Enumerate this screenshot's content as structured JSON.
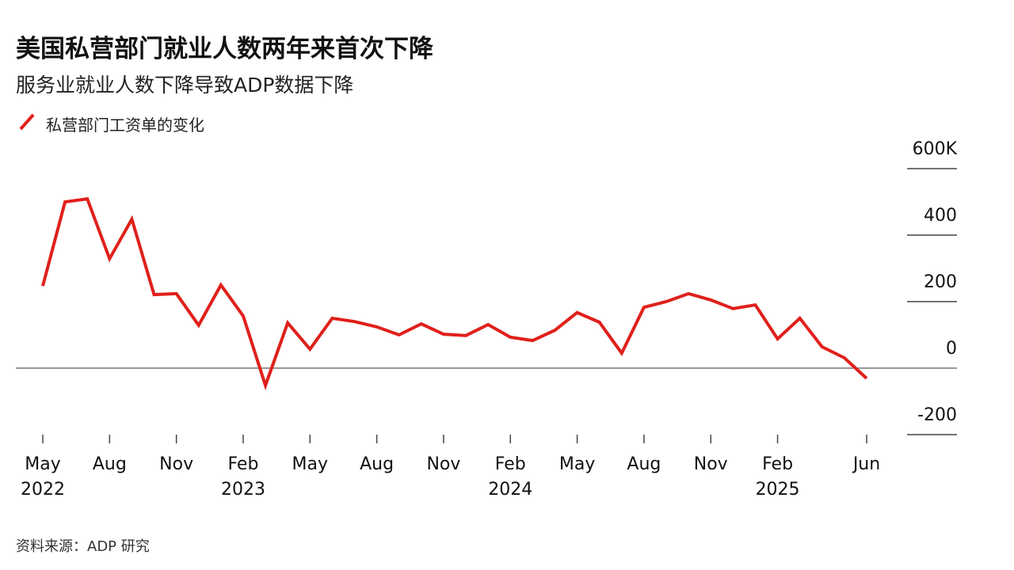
{
  "chart_data": {
    "type": "line",
    "title": "美国私营部门就业人数两年来首次下降",
    "subtitle": "服务业就业人数下降导致ADP数据下降",
    "source": "资料来源：ADP 研究",
    "categories": [
      "May\n2022",
      null,
      null,
      "Aug",
      null,
      null,
      "Nov",
      null,
      null,
      "Feb\n2023",
      null,
      null,
      "May",
      null,
      null,
      "Aug",
      null,
      null,
      "Nov",
      null,
      null,
      "Feb\n2024",
      null,
      null,
      "May",
      null,
      null,
      "Aug",
      null,
      null,
      "Nov",
      null,
      null,
      "Feb\n2025",
      null,
      null,
      null,
      "Jun"
    ],
    "series": [
      {
        "name": "私营部门工资单的变化",
        "color": "#e0201b",
        "values": [
          247,
          500,
          509,
          329,
          448,
          221,
          224,
          129,
          250,
          157,
          -52,
          136,
          57,
          150,
          140,
          124,
          100,
          133,
          102,
          98,
          131,
          93,
          83,
          114,
          167,
          138,
          45,
          183,
          200,
          224,
          205,
          179,
          190,
          88,
          150,
          64,
          31,
          -31
        ]
      }
    ],
    "ylim": [
      -200,
      600
    ],
    "yticks": [
      -200,
      0,
      200,
      400,
      {
        "value": 600,
        "label": "600K"
      }
    ],
    "grid": true
  }
}
